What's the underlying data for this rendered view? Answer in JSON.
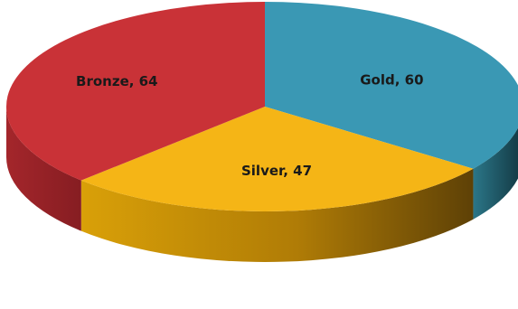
{
  "chart_data": {
    "type": "pie",
    "style": "3d",
    "slices": [
      {
        "category": "Gold",
        "value": 60,
        "label": "Gold, 60",
        "color": "#3a98b4",
        "side_color": "#1e5866",
        "dark_side_color": "#14404b"
      },
      {
        "category": "Silver",
        "value": 47,
        "label": "Silver, 47",
        "color": "#f5b516",
        "side_color": "#c79106",
        "dark_side_color": "#6f4e08"
      },
      {
        "category": "Bronze",
        "value": 64,
        "label": "Bronze, 64",
        "color": "#c93237",
        "side_color": "#992328",
        "dark_side_color": "#7d1b1f"
      }
    ],
    "legend": "none",
    "data_labels": "inside"
  }
}
